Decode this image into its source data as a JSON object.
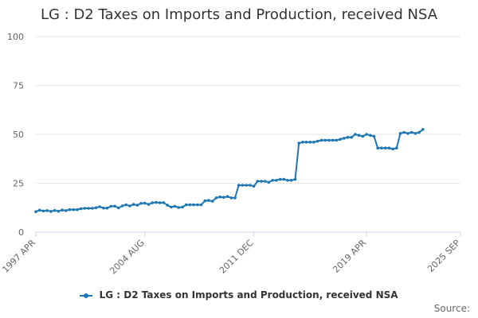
{
  "colors": {
    "series": "#1f77b4",
    "grid": "#e6e6e6",
    "axis": "#ccd6eb"
  },
  "legend_label": "LG : D2 Taxes on Imports and Production, received NSA",
  "source_label": "Source:",
  "chart_data": {
    "type": "line",
    "title": "LG : D2 Taxes on Imports and Production, received NSA",
    "xlabel": "",
    "ylabel": "",
    "ylim": [
      0,
      100
    ],
    "yticks": [
      0,
      25,
      50,
      75,
      100
    ],
    "xlim": [
      0,
      113
    ],
    "xticks": [
      {
        "index": 0,
        "label": "1997 APR"
      },
      {
        "index": 29,
        "label": "2004 AUG"
      },
      {
        "index": 58,
        "label": "2011 DEC"
      },
      {
        "index": 88,
        "label": "2019 APR"
      },
      {
        "index": 113,
        "label": "2025 SEP"
      }
    ],
    "grid": true,
    "legend_position": "bottom-center",
    "series": [
      {
        "name": "LG : D2 Taxes on Imports and Production, received NSA",
        "frequency": "quarterly",
        "start": "1997 APR",
        "values": [
          10.5,
          11.2,
          10.8,
          11.0,
          10.6,
          11.1,
          10.7,
          11.3,
          11.0,
          11.5,
          11.5,
          11.5,
          12.0,
          12.2,
          12.2,
          12.2,
          12.5,
          13.0,
          12.3,
          12.3,
          13.2,
          13.3,
          12.4,
          13.4,
          14.0,
          13.4,
          14.2,
          13.8,
          14.7,
          14.8,
          14.2,
          15.0,
          15.2,
          15.0,
          15.1,
          13.8,
          12.8,
          13.2,
          12.6,
          12.8,
          14.0,
          14.0,
          14.0,
          14.0,
          14.0,
          16.0,
          16.2,
          15.8,
          17.5,
          18.0,
          17.8,
          18.2,
          17.5,
          17.5,
          24.0,
          24.0,
          24.0,
          24.0,
          23.5,
          26.0,
          26.0,
          26.0,
          25.5,
          26.5,
          26.5,
          27.0,
          27.0,
          26.5,
          26.5,
          27.0,
          45.5,
          46.0,
          46.0,
          46.0,
          46.0,
          46.5,
          47.0,
          47.0,
          47.0,
          47.0,
          47.0,
          47.5,
          48.0,
          48.5,
          48.5,
          50.0,
          49.5,
          49.0,
          50.0,
          49.5,
          49.0,
          43.0,
          43.0,
          43.0,
          43.0,
          42.5,
          43.0,
          50.5,
          51.0,
          50.5,
          51.0,
          50.5,
          51.0,
          52.5
        ]
      }
    ]
  }
}
